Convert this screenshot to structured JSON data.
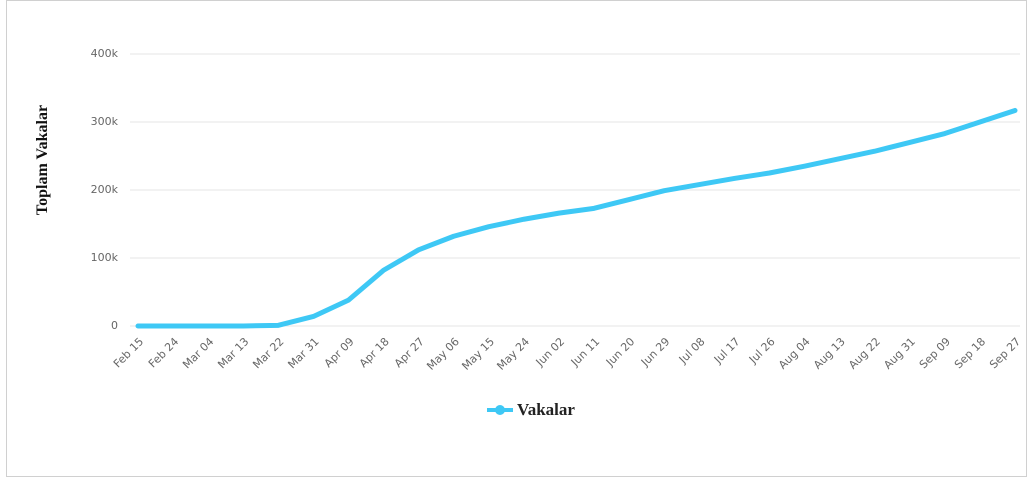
{
  "chart_data": {
    "type": "line",
    "y_axis_label": "Toplam Vakalar",
    "categories": [
      "Feb 15",
      "Feb 24",
      "Mar 04",
      "Mar 13",
      "Mar 22",
      "Mar 31",
      "Apr 09",
      "Apr 18",
      "Apr 27",
      "May 06",
      "May 15",
      "May 24",
      "Jun 02",
      "Jun 11",
      "Jun 20",
      "Jun 29",
      "Jul 08",
      "Jul 17",
      "Jul 26",
      "Aug 04",
      "Aug 13",
      "Aug 22",
      "Aug 31",
      "Sep 09",
      "Sep 18",
      "Sep 27"
    ],
    "series": [
      {
        "name": "Vakalar",
        "color": "#3ec8f5",
        "values": [
          0,
          0,
          0,
          0,
          1000,
          14000,
          38000,
          82000,
          112000,
          132000,
          146000,
          157000,
          166000,
          173000,
          186000,
          199000,
          208000,
          217000,
          225000,
          235000,
          246000,
          257000,
          270000,
          283000,
          300000,
          317000
        ]
      }
    ],
    "ylim": [
      0,
      400000
    ],
    "yticks": [
      {
        "value": 0,
        "label": "0"
      },
      {
        "value": 100000,
        "label": "100k"
      },
      {
        "value": 200000,
        "label": "200k"
      },
      {
        "value": 300000,
        "label": "300k"
      },
      {
        "value": 400000,
        "label": "400k"
      }
    ],
    "grid": true,
    "legend": "bottom"
  }
}
